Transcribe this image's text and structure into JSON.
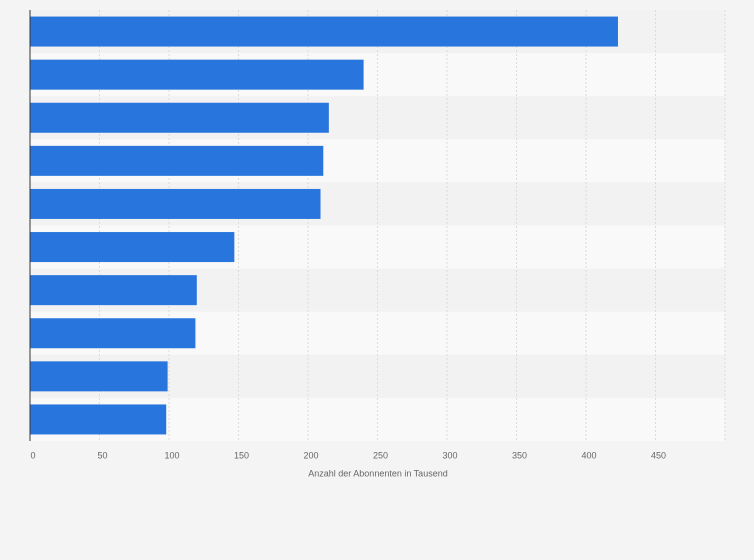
{
  "chart_data": {
    "type": "barh",
    "x_label": "Anzahl der Abonnenten in Tausend",
    "categories": [
      null,
      null,
      null,
      null,
      null,
      null,
      null,
      null,
      null,
      null
    ],
    "values": [
      423,
      240,
      215,
      211,
      209,
      147,
      120,
      119,
      99,
      98
    ],
    "color": "#2876dd",
    "xlim": [
      0,
      500
    ],
    "xticks": [
      0,
      50,
      100,
      150,
      200,
      250,
      300,
      350,
      400,
      450
    ],
    "grid": true
  }
}
